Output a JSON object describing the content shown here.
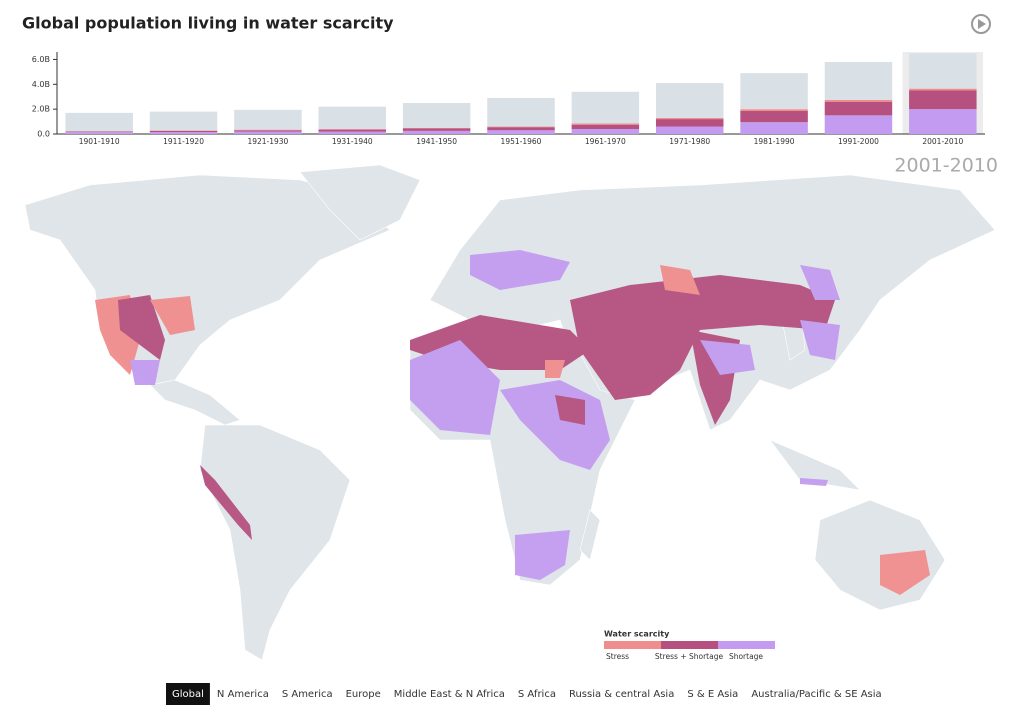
{
  "chart_data": {
    "type": "bar",
    "stacked": true,
    "title": "Global population living in water scarcity",
    "categories": [
      "1901-1910",
      "1911-1920",
      "1921-1930",
      "1931-1940",
      "1941-1950",
      "1951-1960",
      "1961-1970",
      "1971-1980",
      "1981-1990",
      "1991-2000",
      "2001-2010"
    ],
    "selected": 10,
    "series": [
      {
        "name": "Shortage",
        "color": "#c39bf0",
        "values": [
          0.15,
          0.15,
          0.2,
          0.2,
          0.25,
          0.3,
          0.4,
          0.6,
          0.95,
          1.5,
          2.0
        ]
      },
      {
        "name": "Stress + Shortage",
        "color": "#b5507f",
        "values": [
          0.05,
          0.1,
          0.1,
          0.15,
          0.2,
          0.25,
          0.35,
          0.6,
          0.9,
          1.1,
          1.5
        ]
      },
      {
        "name": "Stress",
        "color": "#f08d8d",
        "values": [
          0.02,
          0.03,
          0.05,
          0.05,
          0.05,
          0.05,
          0.1,
          0.1,
          0.15,
          0.15,
          0.15
        ]
      },
      {
        "color": "#d9e1e6",
        "values": [
          1.48,
          1.52,
          1.6,
          1.8,
          2.0,
          2.3,
          2.55,
          2.8,
          2.9,
          3.05,
          2.85
        ]
      }
    ],
    "ylim": [
      0,
      6.6
    ],
    "yticks": [
      {
        "value": 0,
        "label": "0.0"
      },
      {
        "value": 2,
        "label": "2.0B"
      },
      {
        "value": 4,
        "label": "4.0B"
      },
      {
        "value": 6,
        "label": "6.0B"
      }
    ],
    "legend_title": "Water scarcity"
  },
  "page": {
    "regions": [
      "Global",
      "N America",
      "S America",
      "Europe",
      "Middle East & N Africa",
      "S Africa",
      "Russia & central Asia",
      "S & E Asia",
      "Australia/Pacific & SE Asia"
    ],
    "active_region": 0
  }
}
